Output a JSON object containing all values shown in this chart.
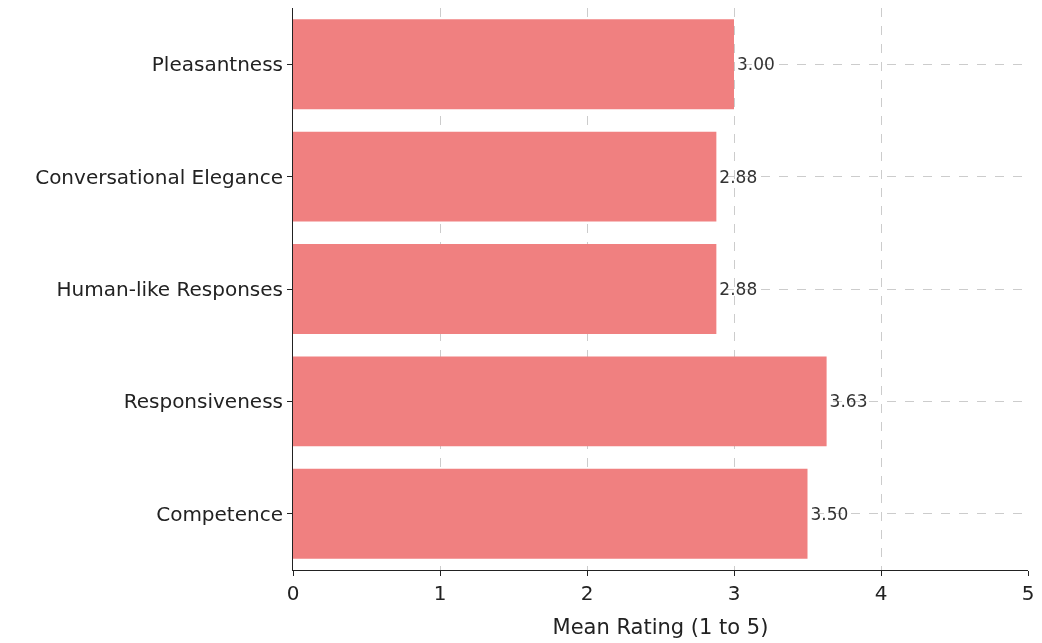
{
  "chart_data": {
    "type": "bar",
    "orientation": "horizontal",
    "xlabel": "Mean Rating (1 to 5)",
    "categories": [
      "Pleasantness",
      "Conversational Elegance",
      "Human-like Responses",
      "Responsiveness",
      "Competence"
    ],
    "values": [
      3.0,
      2.88,
      2.88,
      3.63,
      3.5
    ],
    "value_labels": [
      "3.00",
      "2.88",
      "2.88",
      "3.63",
      "3.50"
    ],
    "color": "#f08080",
    "xlim": [
      0,
      5
    ],
    "xticks": [
      0,
      1,
      2,
      3,
      4,
      5
    ],
    "grid": true
  }
}
